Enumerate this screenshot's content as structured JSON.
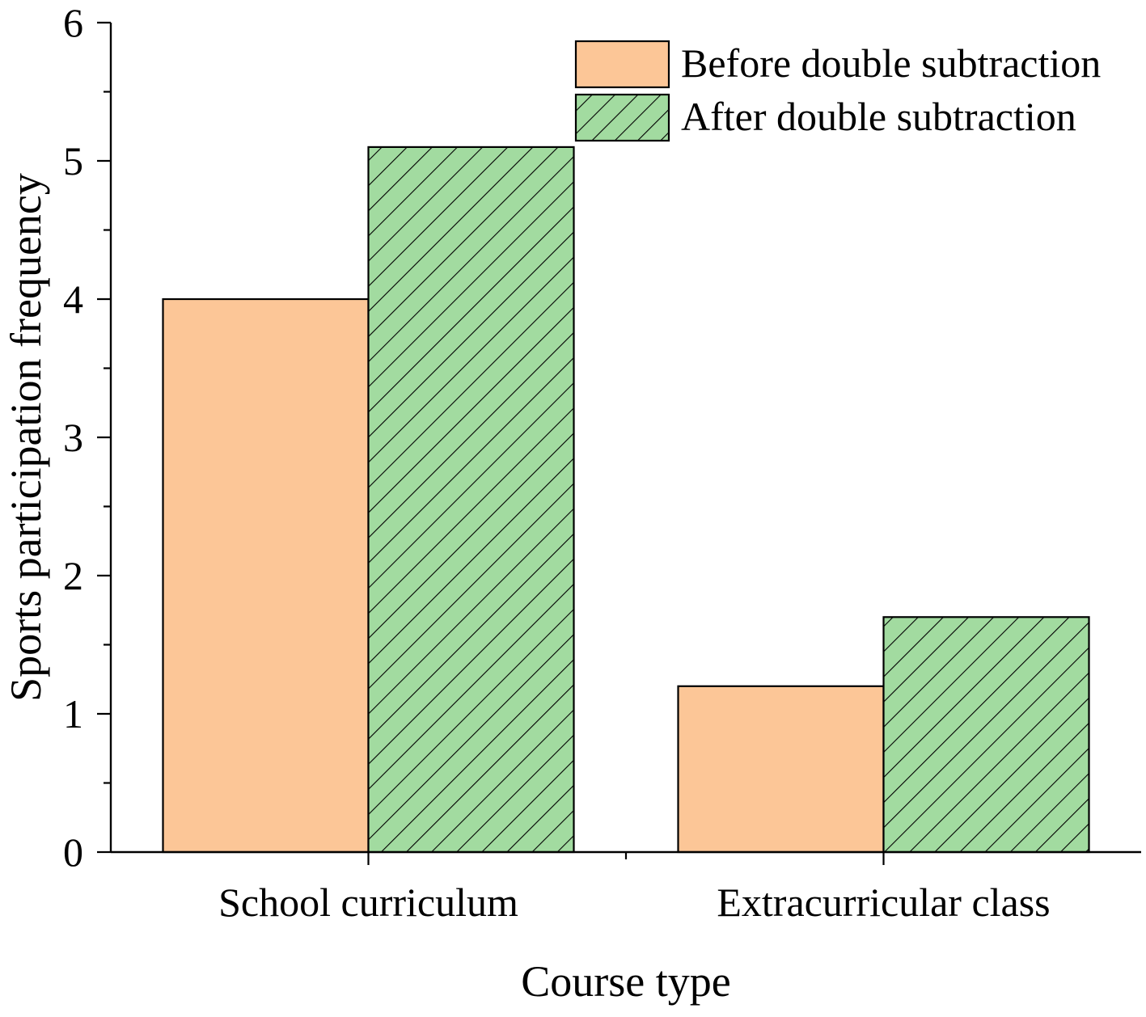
{
  "chart_data": {
    "type": "bar",
    "title": "",
    "xlabel": "Course type",
    "ylabel": "Sports participation frequency",
    "categories": [
      "School curriculum",
      "Extracurricular class"
    ],
    "series": [
      {
        "name": "Before double subtraction",
        "values": [
          4.0,
          1.2
        ],
        "color": "#fcc697",
        "pattern": "solid"
      },
      {
        "name": "After double subtraction",
        "values": [
          5.1,
          1.7
        ],
        "color": "#a2dba0",
        "pattern": "diagonal-hatch"
      }
    ],
    "ylim": [
      0,
      6
    ],
    "yticks": [
      "0",
      "1",
      "2",
      "3",
      "4",
      "5",
      "6"
    ],
    "grid": false,
    "legend_position": "top-right"
  }
}
